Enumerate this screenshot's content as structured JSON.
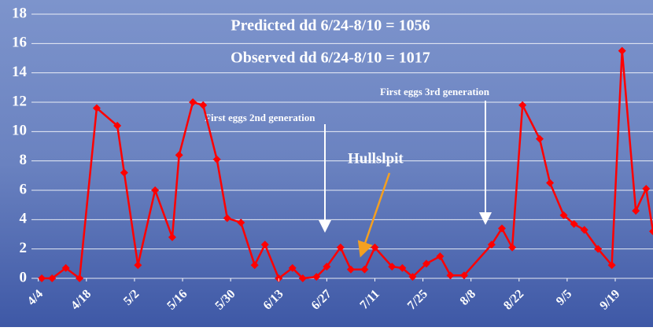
{
  "chart_data": {
    "type": "line",
    "annotations": [
      "Predicted dd 6/24-8/10 = 1056",
      "Observed dd 6/24-8/10 = 1017",
      "First eggs 2nd generation",
      "First eggs 3rd generation",
      "Hullslpit"
    ],
    "x": [
      95,
      98,
      102,
      106,
      111,
      117,
      119,
      123,
      128,
      133,
      135,
      139,
      142,
      146,
      149,
      153,
      157,
      160,
      164,
      168,
      171,
      175,
      178,
      182,
      185,
      189,
      192,
      197,
      200,
      203,
      207,
      211,
      214,
      218,
      226,
      229,
      232,
      235,
      240,
      243,
      247,
      250,
      253,
      257,
      261,
      264,
      268,
      271,
      273
    ],
    "series": [
      {
        "name": "Hullslpit",
        "color": "#ff0000",
        "values": [
          0,
          0,
          0.7,
          0,
          11.6,
          10.4,
          7.2,
          0.9,
          6.0,
          2.8,
          8.4,
          12.0,
          11.8,
          8.1,
          4.1,
          3.8,
          0.9,
          2.3,
          0,
          0.7,
          0,
          0.1,
          0.8,
          2.1,
          0.6,
          0.6,
          2.1,
          0.8,
          0.7,
          0.1,
          1.0,
          1.5,
          0.2,
          0.2,
          2.3,
          3.4,
          2.1,
          11.8,
          9.5,
          6.5,
          4.3,
          3.7,
          3.3,
          2.0,
          0.9,
          15.5,
          4.6,
          6.1,
          3.2
        ]
      }
    ],
    "xlim": [
      92,
      273
    ],
    "xticks": [
      {
        "value": 94,
        "label": "4/4"
      },
      {
        "value": 108,
        "label": "4/18"
      },
      {
        "value": 122,
        "label": "5/2"
      },
      {
        "value": 136,
        "label": "5/16"
      },
      {
        "value": 150,
        "label": "5/30"
      },
      {
        "value": 164,
        "label": "6/13"
      },
      {
        "value": 178,
        "label": "6/27"
      },
      {
        "value": 192,
        "label": "7/11"
      },
      {
        "value": 206,
        "label": "7/25"
      },
      {
        "value": 220,
        "label": "8/8"
      },
      {
        "value": 234,
        "label": "8/22"
      },
      {
        "value": 248,
        "label": "9/5"
      },
      {
        "value": 262,
        "label": "9/19"
      }
    ],
    "ylim": [
      0,
      18
    ],
    "yticks": [
      0,
      2,
      4,
      6,
      8,
      10,
      12,
      14,
      16,
      18
    ],
    "grid": true
  }
}
